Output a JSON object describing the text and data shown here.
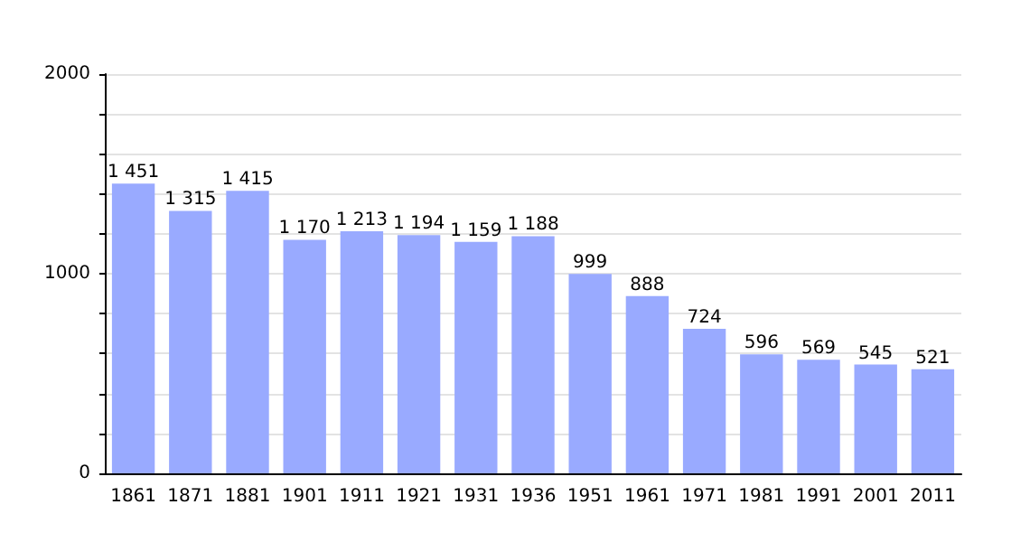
{
  "chart_data": {
    "type": "bar",
    "categories": [
      "1861",
      "1871",
      "1881",
      "1901",
      "1911",
      "1921",
      "1931",
      "1936",
      "1951",
      "1961",
      "1971",
      "1981",
      "1991",
      "2001",
      "2011"
    ],
    "values": [
      1451,
      1315,
      1415,
      1170,
      1213,
      1194,
      1159,
      1188,
      999,
      888,
      724,
      596,
      569,
      545,
      521
    ],
    "value_labels": [
      "1 451",
      "1 315",
      "1 415",
      "1 170",
      "1 213",
      "1 194",
      "1 159",
      "1 188",
      "999",
      "888",
      "724",
      "596",
      "569",
      "545",
      "521"
    ],
    "color": "#99aaff",
    "ylim": [
      0,
      2000
    ],
    "yticks": [
      0,
      {
        "value": 200,
        "label": null
      },
      {
        "value": 400,
        "label": null
      },
      {
        "value": 600,
        "label": null
      },
      {
        "value": 800,
        "label": null
      },
      1000,
      {
        "value": 1200,
        "label": null
      },
      {
        "value": 1400,
        "label": null
      },
      {
        "value": 1600,
        "label": null
      },
      {
        "value": 1800,
        "label": null
      },
      2000
    ],
    "grid": "y"
  }
}
